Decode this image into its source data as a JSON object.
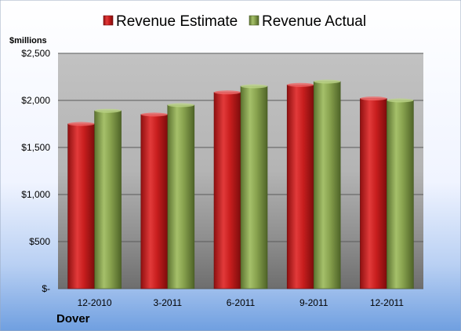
{
  "chart_data": {
    "type": "bar",
    "categories": [
      "12-2010",
      "3-2011",
      "6-2011",
      "9-2011",
      "12-2011"
    ],
    "series": [
      {
        "name": "Revenue Estimate",
        "values": [
          1750,
          1850,
          2085,
          2165,
          2020
        ],
        "color": "#cc1f1f"
      },
      {
        "name": "Revenue Actual",
        "values": [
          1890,
          1950,
          2150,
          2200,
          2000
        ],
        "color": "#8aa64e"
      }
    ],
    "ylabel": "$millions",
    "ylim": [
      0,
      2500
    ],
    "yticks": [
      0,
      500,
      1000,
      1500,
      2000,
      2500
    ],
    "ytick_labels": [
      "$-",
      "$500",
      "$1,000",
      "$1,500",
      "$2,000",
      "$2,500"
    ],
    "grid": true,
    "legend_position": "top",
    "company": "Dover"
  }
}
